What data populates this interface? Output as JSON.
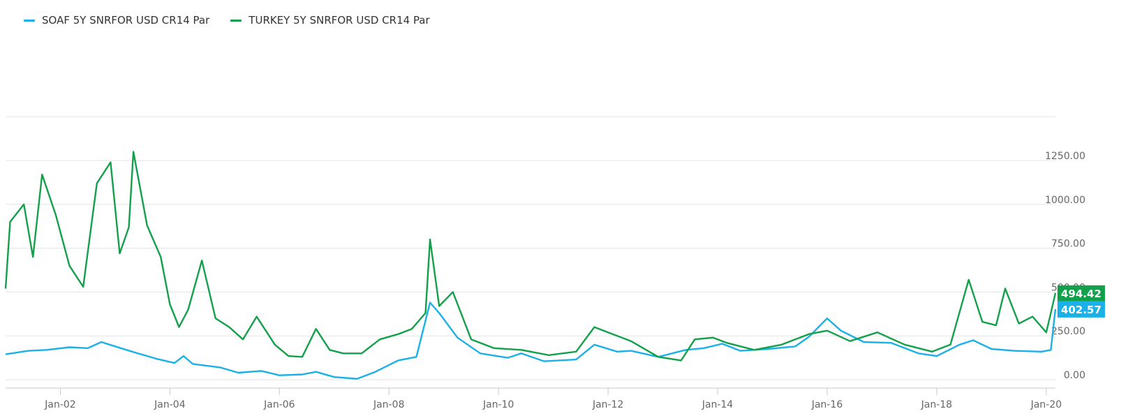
{
  "legend": [
    {
      "label": "SOAF 5Y SNRFOR USD CR14 Par",
      "color": "#1ab0e8"
    },
    {
      "label": "TURKEY 5Y SNRFOR USD CR14 Par",
      "color": "#13a04a"
    }
  ],
  "chart_data": {
    "type": "line",
    "x_ticks": [
      "Jan-02",
      "Jan-04",
      "Jan-06",
      "Jan-08",
      "Jan-10",
      "Jan-12",
      "Jan-14",
      "Jan-16",
      "Jan-18",
      "Jan-20"
    ],
    "y_ticks": [
      "0.00",
      "250.00",
      "500.00",
      "750.00",
      "1000.00",
      "1250.00"
    ],
    "ylim": [
      0,
      1250
    ],
    "xlim": [
      "2001-01",
      "2020-03"
    ],
    "grid": "horizontal",
    "legend_position": "top-left",
    "series": [
      {
        "name": "SOAF 5Y SNRFOR USD CR14 Par",
        "color": "#1ab0e8",
        "last_value": "402.57",
        "points": [
          [
            "2001-01",
            145
          ],
          [
            "2001-06",
            165
          ],
          [
            "2001-10",
            170
          ],
          [
            "2002-03",
            185
          ],
          [
            "2002-07",
            180
          ],
          [
            "2002-10",
            215
          ],
          [
            "2003-01",
            190
          ],
          [
            "2003-06",
            150
          ],
          [
            "2003-10",
            120
          ],
          [
            "2004-02",
            95
          ],
          [
            "2004-04",
            135
          ],
          [
            "2004-06",
            90
          ],
          [
            "2004-12",
            70
          ],
          [
            "2005-04",
            40
          ],
          [
            "2005-09",
            50
          ],
          [
            "2006-01",
            25
          ],
          [
            "2006-06",
            30
          ],
          [
            "2006-09",
            45
          ],
          [
            "2007-01",
            15
          ],
          [
            "2007-06",
            5
          ],
          [
            "2007-10",
            45
          ],
          [
            "2008-03",
            110
          ],
          [
            "2008-07",
            130
          ],
          [
            "2008-10",
            440
          ],
          [
            "2008-12",
            380
          ],
          [
            "2009-04",
            240
          ],
          [
            "2009-09",
            150
          ],
          [
            "2010-03",
            125
          ],
          [
            "2010-06",
            150
          ],
          [
            "2010-11",
            105
          ],
          [
            "2011-06",
            115
          ],
          [
            "2011-10",
            200
          ],
          [
            "2012-03",
            160
          ],
          [
            "2012-06",
            165
          ],
          [
            "2012-12",
            130
          ],
          [
            "2013-06",
            170
          ],
          [
            "2013-10",
            180
          ],
          [
            "2014-02",
            205
          ],
          [
            "2014-06",
            165
          ],
          [
            "2014-12",
            175
          ],
          [
            "2015-06",
            190
          ],
          [
            "2015-09",
            245
          ],
          [
            "2016-01",
            350
          ],
          [
            "2016-04",
            280
          ],
          [
            "2016-09",
            215
          ],
          [
            "2017-03",
            210
          ],
          [
            "2017-09",
            150
          ],
          [
            "2018-01",
            135
          ],
          [
            "2018-06",
            200
          ],
          [
            "2018-09",
            225
          ],
          [
            "2019-01",
            175
          ],
          [
            "2019-06",
            165
          ],
          [
            "2019-12",
            160
          ],
          [
            "2020-02",
            170
          ],
          [
            "2020-03",
            402.57
          ]
        ]
      },
      {
        "name": "TURKEY 5Y SNRFOR USD CR14 Par",
        "color": "#13a04a",
        "last_value": "494.42",
        "points": [
          [
            "2001-01",
            520
          ],
          [
            "2001-02",
            900
          ],
          [
            "2001-05",
            1000
          ],
          [
            "2001-07",
            700
          ],
          [
            "2001-09",
            1170
          ],
          [
            "2001-12",
            940
          ],
          [
            "2002-03",
            650
          ],
          [
            "2002-06",
            530
          ],
          [
            "2002-09",
            1120
          ],
          [
            "2002-12",
            1240
          ],
          [
            "2003-02",
            720
          ],
          [
            "2003-04",
            870
          ],
          [
            "2003-05",
            1300
          ],
          [
            "2003-08",
            880
          ],
          [
            "2003-11",
            700
          ],
          [
            "2004-01",
            430
          ],
          [
            "2004-03",
            300
          ],
          [
            "2004-05",
            400
          ],
          [
            "2004-08",
            680
          ],
          [
            "2004-11",
            350
          ],
          [
            "2005-02",
            300
          ],
          [
            "2005-05",
            230
          ],
          [
            "2005-08",
            360
          ],
          [
            "2005-12",
            200
          ],
          [
            "2006-03",
            135
          ],
          [
            "2006-06",
            130
          ],
          [
            "2006-09",
            290
          ],
          [
            "2006-12",
            170
          ],
          [
            "2007-03",
            150
          ],
          [
            "2007-07",
            150
          ],
          [
            "2007-11",
            230
          ],
          [
            "2008-03",
            260
          ],
          [
            "2008-06",
            290
          ],
          [
            "2008-09",
            380
          ],
          [
            "2008-10",
            800
          ],
          [
            "2008-12",
            420
          ],
          [
            "2009-03",
            500
          ],
          [
            "2009-07",
            230
          ],
          [
            "2009-12",
            180
          ],
          [
            "2010-06",
            170
          ],
          [
            "2010-12",
            140
          ],
          [
            "2011-06",
            160
          ],
          [
            "2011-10",
            300
          ],
          [
            "2012-02",
            260
          ],
          [
            "2012-06",
            220
          ],
          [
            "2012-12",
            130
          ],
          [
            "2013-05",
            110
          ],
          [
            "2013-08",
            230
          ],
          [
            "2013-12",
            240
          ],
          [
            "2014-03",
            210
          ],
          [
            "2014-09",
            170
          ],
          [
            "2015-03",
            200
          ],
          [
            "2015-09",
            260
          ],
          [
            "2016-01",
            280
          ],
          [
            "2016-06",
            220
          ],
          [
            "2016-12",
            270
          ],
          [
            "2017-06",
            200
          ],
          [
            "2017-12",
            160
          ],
          [
            "2018-04",
            200
          ],
          [
            "2018-08",
            570
          ],
          [
            "2018-11",
            330
          ],
          [
            "2019-02",
            310
          ],
          [
            "2019-04",
            520
          ],
          [
            "2019-07",
            320
          ],
          [
            "2019-10",
            360
          ],
          [
            "2020-01",
            270
          ],
          [
            "2020-02",
            380
          ],
          [
            "2020-03",
            494.42
          ]
        ]
      }
    ]
  }
}
